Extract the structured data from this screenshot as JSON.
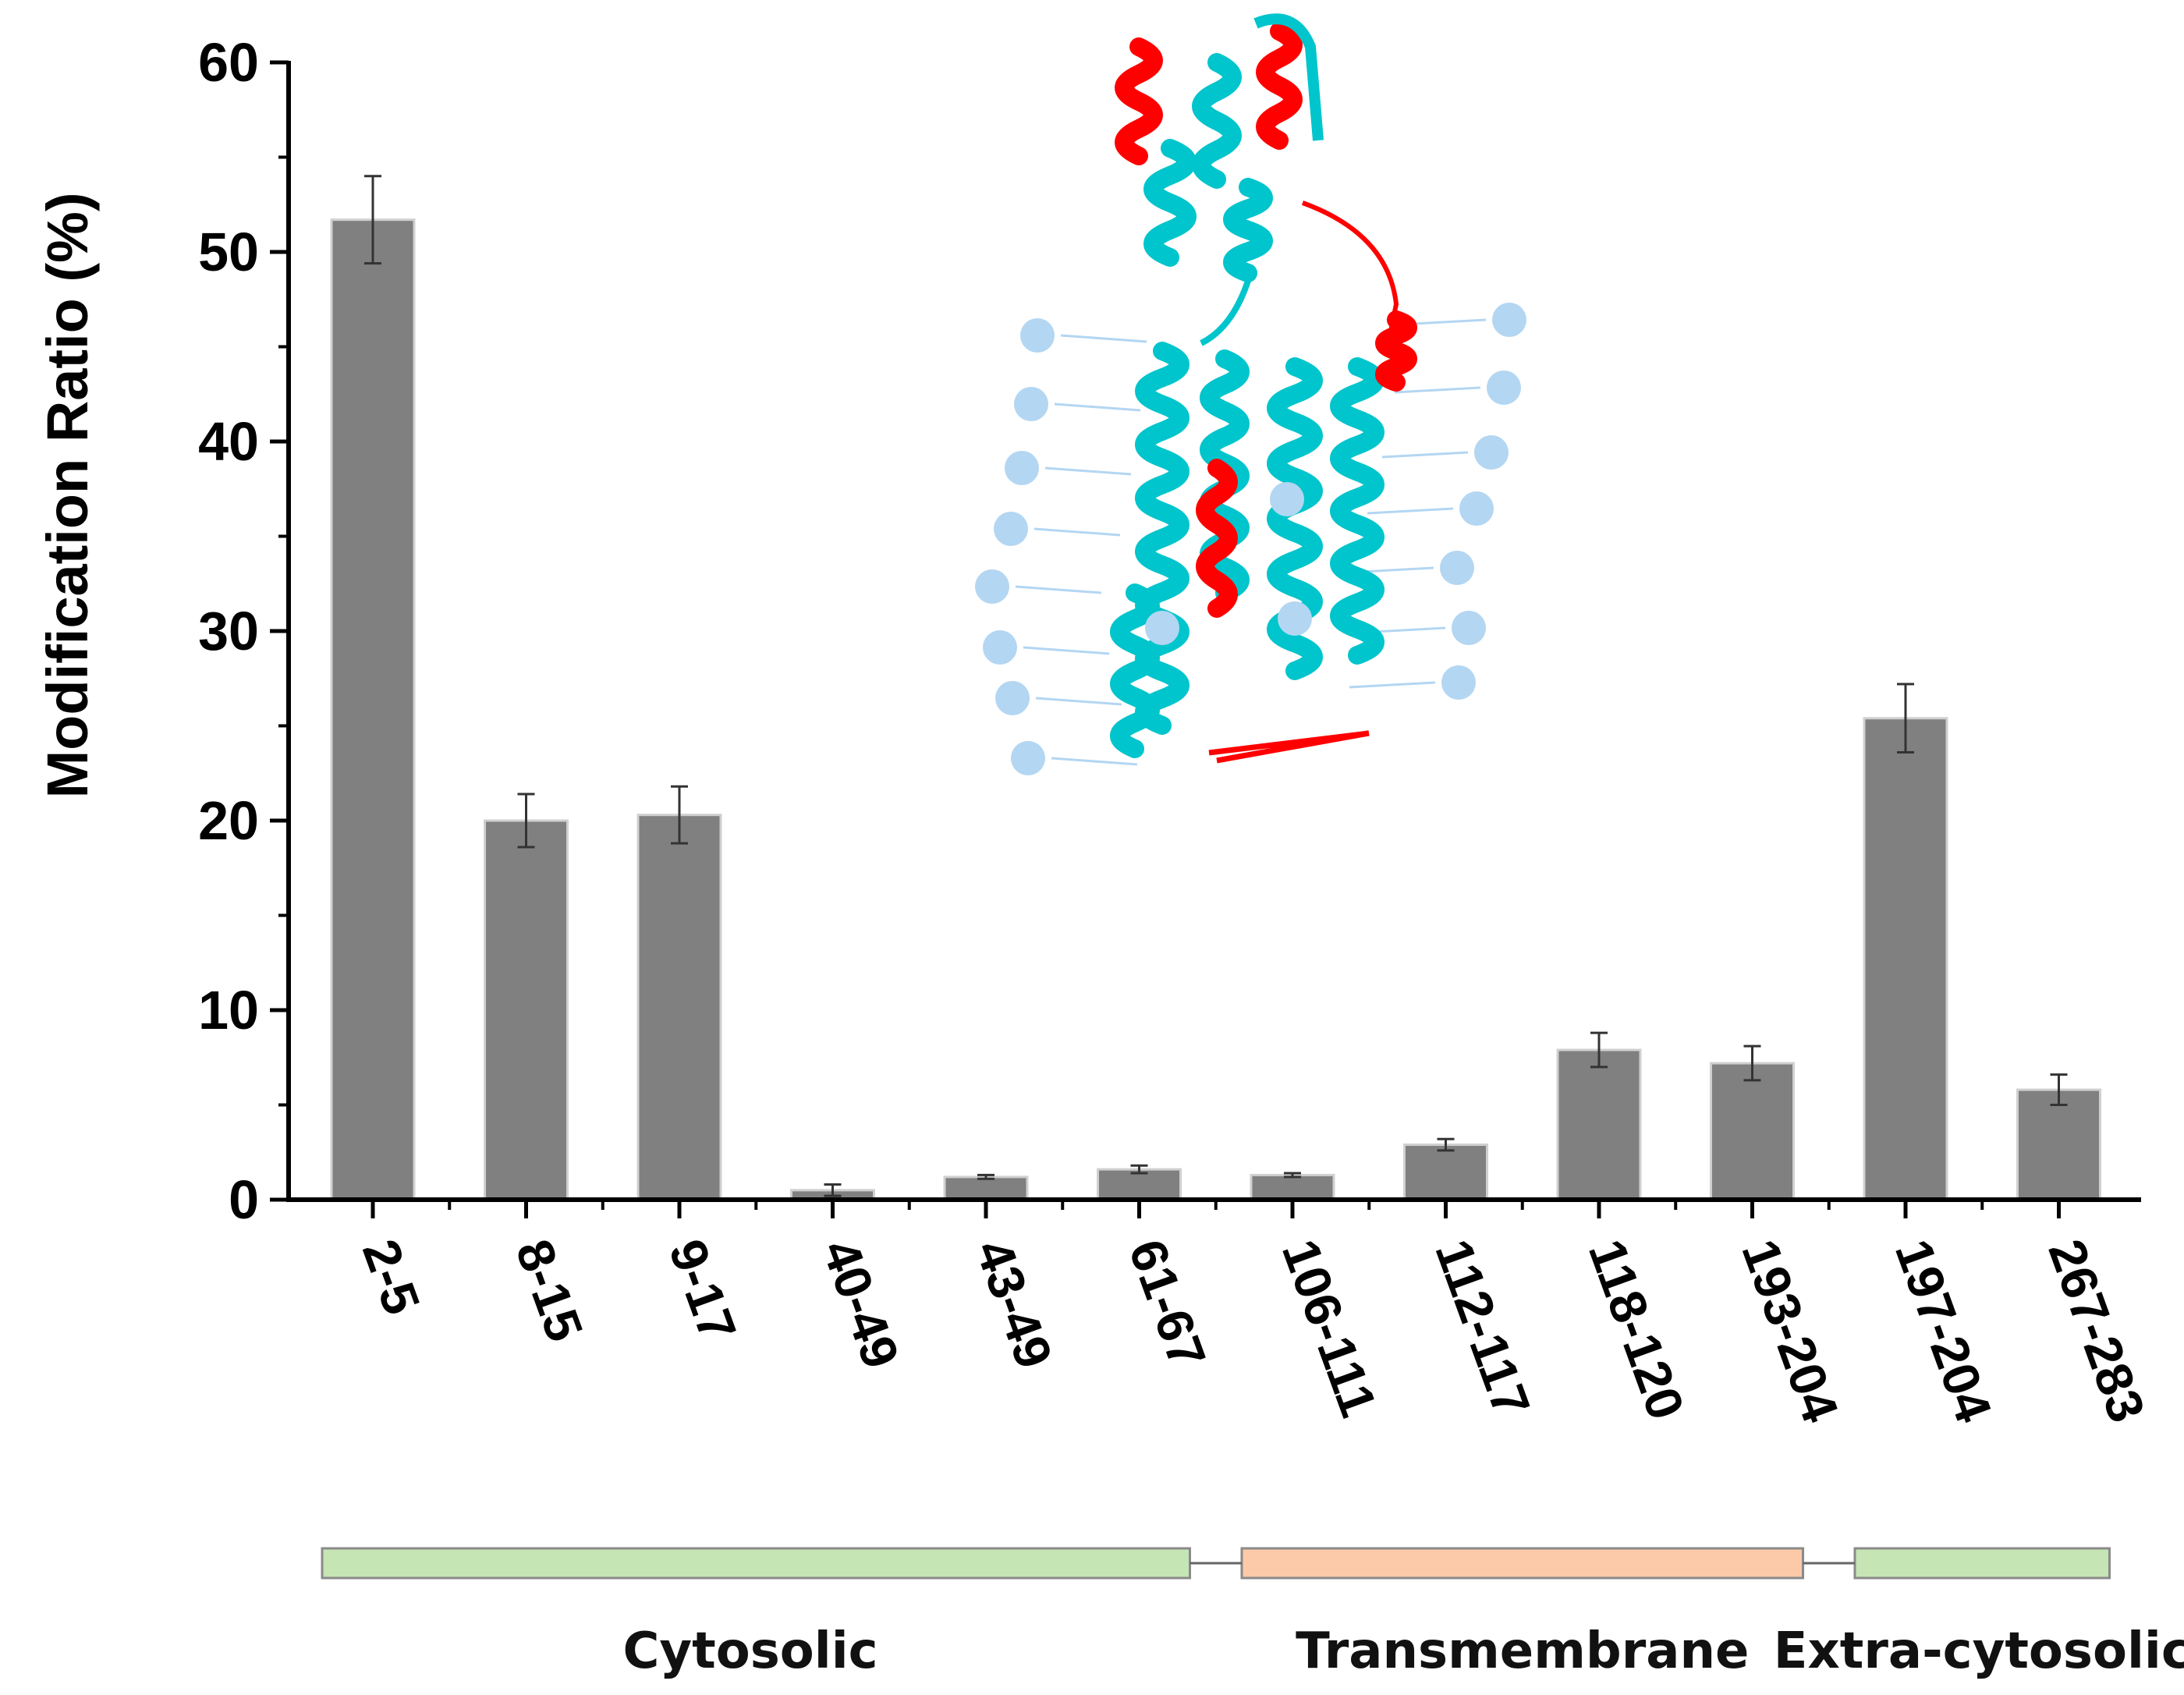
{
  "chart_data": {
    "type": "bar",
    "title": "",
    "xlabel": "",
    "ylabel": "Modification Ratio (%)",
    "ylim": [
      0,
      60
    ],
    "yticks": [
      0,
      10,
      20,
      30,
      40,
      50,
      60
    ],
    "categories": [
      "2-5",
      "8-15",
      "9-17",
      "40-49",
      "43-49",
      "61-67",
      "106-111",
      "112-117",
      "118-120",
      "193-204",
      "197-204",
      "267-283"
    ],
    "values": [
      51.7,
      20.0,
      20.3,
      0.5,
      1.2,
      1.6,
      1.3,
      2.9,
      7.9,
      7.2,
      25.4,
      5.8
    ],
    "errors": [
      2.3,
      1.4,
      1.5,
      0.3,
      0.1,
      0.2,
      0.1,
      0.3,
      0.9,
      0.9,
      1.8,
      0.8
    ],
    "bar_color": "#808080",
    "regions": [
      {
        "label": "Cytosolic",
        "from_category": "2-5",
        "to_category": "61-67",
        "color": "#c6e5b4"
      },
      {
        "label": "Transmembrane",
        "from_category": "106-111",
        "to_category": "193-204",
        "color": "#fccaa8"
      },
      {
        "label": "Extra-cytosolic",
        "from_category": "197-204",
        "to_category": "267-283",
        "color": "#c6e5b4"
      }
    ],
    "inset": {
      "description_colors": {
        "helix_a": "#00c5cc",
        "helix_b": "#ff0000",
        "lipid": "#b3d6f2"
      }
    }
  }
}
